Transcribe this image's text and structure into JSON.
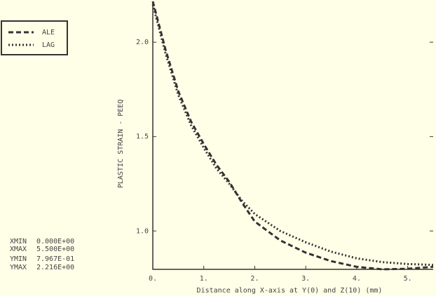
{
  "chart_data": {
    "type": "line",
    "x_label": "Distance along X-axis at Y(0) and Z(10) (mm)",
    "y_label": "PLASTIC STRAIN - PEEQ",
    "x": [
      0,
      0.25,
      0.5,
      0.75,
      1,
      1.25,
      1.5,
      1.75,
      2,
      2.5,
      3,
      3.5,
      4,
      4.5,
      5,
      5.5
    ],
    "series": [
      {
        "name": "ALE",
        "color": "#333333",
        "style": "dashed",
        "values": [
          2.216,
          1.96,
          1.74,
          1.58,
          1.46,
          1.35,
          1.26,
          1.15,
          1.05,
          0.95,
          0.885,
          0.84,
          0.81,
          0.797,
          0.8,
          0.81
        ]
      },
      {
        "name": "LAG",
        "color": "#333333",
        "style": "dotted",
        "values": [
          2.2,
          1.94,
          1.72,
          1.56,
          1.44,
          1.33,
          1.25,
          1.16,
          1.09,
          1.0,
          0.94,
          0.89,
          0.855,
          0.835,
          0.825,
          0.82
        ]
      }
    ],
    "xlim": [
      0,
      5.5
    ],
    "ylim": [
      0.7967,
      2.216
    ],
    "xticks": [
      {
        "value": 0,
        "label": "0."
      },
      {
        "value": 1,
        "label": "1."
      },
      {
        "value": 2,
        "label": "2."
      },
      {
        "value": 3,
        "label": "3."
      },
      {
        "value": 4,
        "label": "4."
      },
      {
        "value": 5,
        "label": "5."
      }
    ],
    "yticks": [
      {
        "value": 1.0,
        "label": "1.0"
      },
      {
        "value": 1.5,
        "label": "1.5"
      },
      {
        "value": 2.0,
        "label": "2.0"
      }
    ],
    "legend": "top-left",
    "limits": [
      [
        "XMIN",
        "0.000E+00"
      ],
      [
        "XMAX",
        "5.500E+00"
      ],
      [
        "YMIN",
        "7.967E-01"
      ],
      [
        "YMAX",
        "2.216E+00"
      ]
    ]
  }
}
